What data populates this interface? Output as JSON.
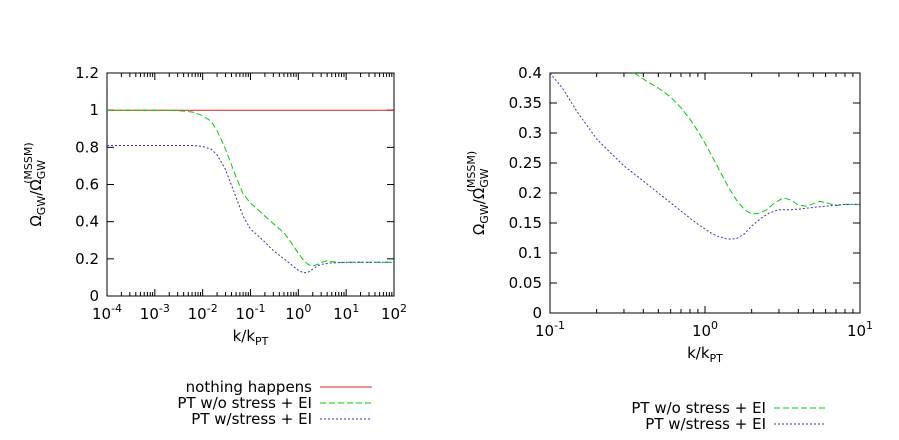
{
  "chart_data": [
    {
      "type": "line",
      "xscale": "log",
      "xlim": [
        0.0001,
        100
      ],
      "ylim": [
        0,
        1.2
      ],
      "xlabel": "k/k_PT",
      "ylabel": "Ω_GW/Ω_GW^(MSSM)",
      "xlabel_main": "k/k",
      "xlabel_sub": "PT",
      "ylabel_main": "Ω",
      "ylabel_sub": "GW",
      "ylabel_sep": "/Ω",
      "ylabel_sub2": "GW",
      "ylabel_sup": "(MSSM)",
      "x_ticks": [
        {
          "base": "10",
          "exp": "-4",
          "value": 0.0001
        },
        {
          "base": "10",
          "exp": "-3",
          "value": 0.001
        },
        {
          "base": "10",
          "exp": "-2",
          "value": 0.01
        },
        {
          "base": "10",
          "exp": "-1",
          "value": 0.1
        },
        {
          "base": "10",
          "exp": "0",
          "value": 1
        },
        {
          "base": "10",
          "exp": "1",
          "value": 10
        },
        {
          "base": "10",
          "exp": "2",
          "value": 100
        }
      ],
      "y_ticks": [
        {
          "label": "0",
          "value": 0
        },
        {
          "label": "0.2",
          "value": 0.2
        },
        {
          "label": "0.4",
          "value": 0.4
        },
        {
          "label": "0.6",
          "value": 0.6
        },
        {
          "label": "0.8",
          "value": 0.8
        },
        {
          "label": "1",
          "value": 1
        },
        {
          "label": "1.2",
          "value": 1.2
        }
      ],
      "grid": false,
      "legend_position": "below",
      "series": [
        {
          "name": "nothing happens",
          "color": "#e41a1c",
          "dash": "solid",
          "x": [
            0.0001,
            100
          ],
          "y": [
            1,
            1
          ]
        },
        {
          "name": "PT w/o stress + EI",
          "color": "#00cc00",
          "dash": "dashed",
          "x": [
            0.0001,
            0.001,
            0.003,
            0.006,
            0.01,
            0.015,
            0.02,
            0.03,
            0.05,
            0.07,
            0.1,
            0.15,
            0.2,
            0.3,
            0.5,
            0.7,
            1,
            1.3,
            1.6,
            2,
            2.5,
            3,
            4,
            5,
            7,
            10,
            20,
            50,
            100
          ],
          "y": [
            1,
            1,
            0.998,
            0.99,
            0.97,
            0.94,
            0.89,
            0.79,
            0.64,
            0.55,
            0.5,
            0.46,
            0.43,
            0.39,
            0.34,
            0.29,
            0.23,
            0.19,
            0.17,
            0.16,
            0.17,
            0.18,
            0.19,
            0.185,
            0.18,
            0.182,
            0.181,
            0.182,
            0.182
          ]
        },
        {
          "name": "PT w/stress + EI",
          "color": "#3333cc",
          "dash": "dotted",
          "x": [
            0.0001,
            0.001,
            0.003,
            0.006,
            0.01,
            0.015,
            0.02,
            0.03,
            0.05,
            0.07,
            0.1,
            0.15,
            0.2,
            0.3,
            0.5,
            0.7,
            1,
            1.3,
            1.6,
            2,
            2.5,
            3,
            4,
            5,
            7,
            10,
            20,
            50,
            100
          ],
          "y": [
            0.81,
            0.81,
            0.81,
            0.81,
            0.805,
            0.79,
            0.76,
            0.68,
            0.53,
            0.43,
            0.36,
            0.32,
            0.29,
            0.245,
            0.2,
            0.17,
            0.138,
            0.125,
            0.128,
            0.145,
            0.162,
            0.17,
            0.175,
            0.178,
            0.18,
            0.181,
            0.182,
            0.182,
            0.182
          ]
        }
      ]
    },
    {
      "type": "line",
      "xscale": "log",
      "xlim": [
        0.1,
        10
      ],
      "ylim": [
        0,
        0.4
      ],
      "xlabel": "k/k_PT",
      "ylabel": "Ω_GW/Ω_GW^(MSSM)",
      "xlabel_main": "k/k",
      "xlabel_sub": "PT",
      "ylabel_main": "Ω",
      "ylabel_sub": "GW",
      "ylabel_sep": "/Ω",
      "ylabel_sub2": "GW",
      "ylabel_sup": "(MSSM)",
      "x_ticks": [
        {
          "base": "10",
          "exp": "-1",
          "value": 0.1
        },
        {
          "base": "10",
          "exp": "0",
          "value": 1
        },
        {
          "base": "10",
          "exp": "1",
          "value": 10
        }
      ],
      "y_ticks": [
        {
          "label": "0",
          "value": 0
        },
        {
          "label": "0.05",
          "value": 0.05
        },
        {
          "label": "0.1",
          "value": 0.1
        },
        {
          "label": "0.15",
          "value": 0.15
        },
        {
          "label": "0.2",
          "value": 0.2
        },
        {
          "label": "0.25",
          "value": 0.25
        },
        {
          "label": "0.3",
          "value": 0.3
        },
        {
          "label": "0.35",
          "value": 0.35
        },
        {
          "label": "0.4",
          "value": 0.4
        }
      ],
      "grid": false,
      "legend_position": "below",
      "series": [
        {
          "name": "PT w/o stress + EI",
          "color": "#00cc00",
          "dash": "dashed",
          "x": [
            0.35,
            0.4,
            0.5,
            0.6,
            0.7,
            0.8,
            0.9,
            1.0,
            1.2,
            1.4,
            1.6,
            1.8,
            2.0,
            2.2,
            2.5,
            2.8,
            3.2,
            3.6,
            4.0,
            4.5,
            5.0,
            5.5,
            6.0,
            7.0,
            8.0,
            10.0
          ],
          "y": [
            0.4,
            0.39,
            0.375,
            0.36,
            0.342,
            0.323,
            0.303,
            0.283,
            0.245,
            0.212,
            0.188,
            0.172,
            0.165,
            0.166,
            0.172,
            0.183,
            0.192,
            0.188,
            0.18,
            0.178,
            0.182,
            0.186,
            0.184,
            0.179,
            0.181,
            0.181
          ]
        },
        {
          "name": "PT w/stress + EI",
          "color": "#3333cc",
          "dash": "dotted",
          "x": [
            0.1,
            0.12,
            0.15,
            0.2,
            0.25,
            0.3,
            0.4,
            0.5,
            0.6,
            0.7,
            0.8,
            0.9,
            1.0,
            1.1,
            1.2,
            1.4,
            1.6,
            1.8,
            2.0,
            2.3,
            2.6,
            3.0,
            3.5,
            4.0,
            5.0,
            6.0,
            7.0,
            8.0,
            10.0
          ],
          "y": [
            0.4,
            0.375,
            0.335,
            0.29,
            0.265,
            0.245,
            0.22,
            0.2,
            0.184,
            0.17,
            0.158,
            0.148,
            0.14,
            0.133,
            0.128,
            0.123,
            0.124,
            0.132,
            0.145,
            0.158,
            0.167,
            0.172,
            0.172,
            0.173,
            0.176,
            0.178,
            0.18,
            0.181,
            0.181
          ]
        }
      ]
    }
  ]
}
